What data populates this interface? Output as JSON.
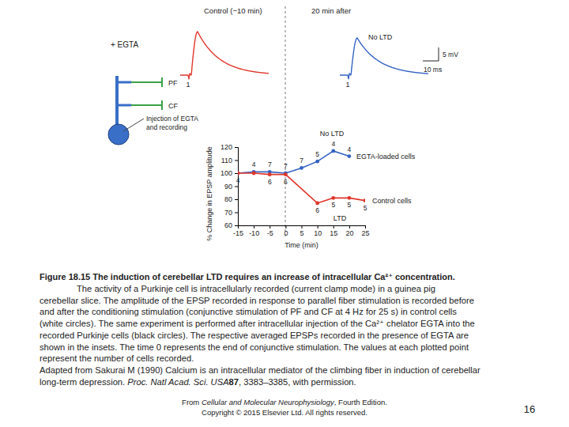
{
  "chart_data": {
    "type": "line",
    "x_label": "Time (min)",
    "y_label": "% Change in EPSP amplitude",
    "xlim": [
      -15,
      25
    ],
    "xticks": [
      -15,
      -10,
      -5,
      0,
      5,
      10,
      15,
      20,
      25
    ],
    "ylim": [
      60,
      120
    ],
    "yticks": [
      60,
      70,
      80,
      90,
      100,
      110,
      120
    ],
    "marker": "circle",
    "series": [
      {
        "name": "EGTA-loaded cells",
        "color": "#3563c4",
        "x": [
          -15,
          -10,
          -5,
          0,
          5,
          10,
          15,
          20
        ],
        "values": [
          100,
          101,
          101,
          100,
          104,
          109,
          117,
          113
        ],
        "n": [
          null,
          4,
          7,
          7,
          7,
          5,
          4,
          4
        ]
      },
      {
        "name": "Control cells",
        "color": "#e0362b",
        "x": [
          -15,
          -10,
          -5,
          0,
          10,
          15,
          20,
          25
        ],
        "values": [
          100,
          100,
          99,
          99,
          77,
          81,
          81,
          79
        ],
        "n": [
          4,
          null,
          6,
          6,
          6,
          5,
          5,
          5
        ]
      }
    ],
    "annotations": [
      "No LTD",
      "LTD"
    ]
  },
  "insets": {
    "before": {
      "title": "Control (−10 min)",
      "stimulus": "1",
      "color": "#e0362b"
    },
    "after": {
      "title": "20 min after",
      "stimulus": "1",
      "label": "No LTD",
      "color": "#3563c4"
    },
    "scale_bar": {
      "y": "5 mV",
      "x": "10 ms"
    }
  },
  "diagram": {
    "condition": "+ EGTA",
    "labels": [
      "PF",
      "CF"
    ],
    "electrode": [
      "Injection of EGTA",
      "and recording"
    ]
  },
  "caption": {
    "title": "Figure 18.15 The induction of cerebellar LTD requires an increase of intracellular Ca²⁺ concentration.",
    "lines": [
      "The activity of a Purkinje cell is intracellularly recorded (current clamp mode) in a guinea pig",
      "cerebellar slice. The amplitude of the EPSP recorded in response to parallel fiber stimulation is recorded before",
      "and after the conditioning stimulation (conjunctive stimulation of PF and CF at 4 Hz for 25 s) in control cells",
      "(white circles). The same experiment is performed after intracellular injection of the Ca²⁺ chelator EGTA into the",
      "recorded Purkinje cells (black circles). The respective averaged EPSPs recorded in the presence of EGTA are",
      "shown in the insets. The time 0 represents the end of conjunctive stimulation. The values at each plotted point",
      "represent the number of cells recorded.",
      "Adapted from Sakurai M (1990) Calcium is an intracellular mediator of the climbing fiber in induction of cerebellar"
    ],
    "reference": [
      "long-term depression. ",
      "Proc. Natl Acad. Sci. USA",
      "87",
      ", 3383–3385, with permission."
    ]
  },
  "footer": {
    "source": [
      "From ",
      "Cellular and Molecular Neurophysiology",
      ", Fourth Edition."
    ],
    "copyright": "Copyright © 2015 Elsevier Ltd. All rights reserved."
  },
  "page_number": "16"
}
